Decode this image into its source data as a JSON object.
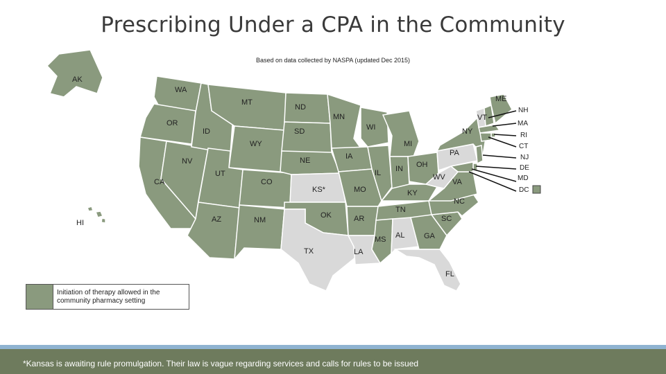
{
  "header": {
    "title": "Prescribing Under a CPA in the Community",
    "subtitle": "Based on data collected by NASPA (updated Dec 2015)"
  },
  "colors": {
    "allowed": "#8a9a7e",
    "not_allowed": "#d9d9d9",
    "footer_bg": "#6e7b5d",
    "stripe": "#8fb3d1"
  },
  "map": {
    "states": {
      "AK": {
        "label": "AK",
        "status": "allowed"
      },
      "WA": {
        "label": "WA",
        "status": "allowed"
      },
      "OR": {
        "label": "OR",
        "status": "allowed"
      },
      "CA": {
        "label": "CA",
        "status": "allowed"
      },
      "NV": {
        "label": "NV",
        "status": "allowed"
      },
      "ID": {
        "label": "ID",
        "status": "allowed"
      },
      "MT": {
        "label": "MT",
        "status": "allowed"
      },
      "WY": {
        "label": "WY",
        "status": "allowed"
      },
      "UT": {
        "label": "UT",
        "status": "allowed"
      },
      "CO": {
        "label": "CO",
        "status": "allowed"
      },
      "AZ": {
        "label": "AZ",
        "status": "allowed"
      },
      "NM": {
        "label": "NM",
        "status": "allowed"
      },
      "ND": {
        "label": "ND",
        "status": "allowed"
      },
      "SD": {
        "label": "SD",
        "status": "allowed"
      },
      "NE": {
        "label": "NE",
        "status": "allowed"
      },
      "KS": {
        "label": "KS*",
        "status": "not_allowed"
      },
      "OK": {
        "label": "OK",
        "status": "allowed"
      },
      "TX": {
        "label": "TX",
        "status": "not_allowed"
      },
      "MN": {
        "label": "MN",
        "status": "allowed"
      },
      "IA": {
        "label": "IA",
        "status": "allowed"
      },
      "MO": {
        "label": "MO",
        "status": "allowed"
      },
      "AR": {
        "label": "AR",
        "status": "allowed"
      },
      "LA": {
        "label": "LA",
        "status": "not_allowed"
      },
      "WI": {
        "label": "WI",
        "status": "allowed"
      },
      "IL": {
        "label": "IL",
        "status": "allowed"
      },
      "MI": {
        "label": "MI",
        "status": "allowed"
      },
      "IN": {
        "label": "IN",
        "status": "allowed"
      },
      "OH": {
        "label": "OH",
        "status": "allowed"
      },
      "KY": {
        "label": "KY",
        "status": "allowed"
      },
      "TN": {
        "label": "TN",
        "status": "allowed"
      },
      "MS": {
        "label": "MS",
        "status": "allowed"
      },
      "AL": {
        "label": "AL",
        "status": "not_allowed"
      },
      "GA": {
        "label": "GA",
        "status": "allowed"
      },
      "FL": {
        "label": "FL",
        "status": "not_allowed"
      },
      "SC": {
        "label": "SC",
        "status": "allowed"
      },
      "NC": {
        "label": "NC",
        "status": "allowed"
      },
      "VA": {
        "label": "VA",
        "status": "allowed"
      },
      "WV": {
        "label": "WV",
        "status": "not_allowed"
      },
      "PA": {
        "label": "PA",
        "status": "not_allowed"
      },
      "NY": {
        "label": "NY",
        "status": "allowed"
      },
      "VT": {
        "label": "VT",
        "status": "not_allowed"
      },
      "ME": {
        "label": "ME",
        "status": "allowed"
      },
      "NH": {
        "label": "NH",
        "status": "allowed"
      },
      "MA": {
        "label": "MA",
        "status": "allowed"
      },
      "RI": {
        "label": "RI",
        "status": "allowed"
      },
      "CT": {
        "label": "CT",
        "status": "allowed"
      },
      "NJ": {
        "label": "NJ",
        "status": "allowed"
      },
      "DE": {
        "label": "DE",
        "status": "allowed"
      },
      "MD": {
        "label": "MD",
        "status": "allowed"
      },
      "DC": {
        "label": "DC",
        "status": "allowed"
      },
      "HI": {
        "label": "HI",
        "status": "allowed"
      }
    }
  },
  "legend": {
    "allowed_text": "Initiation of therapy allowed in the community pharmacy setting"
  },
  "footer": {
    "note": "*Kansas is awaiting rule promulgation. Their law is vague regarding services and calls for rules to be issued"
  }
}
